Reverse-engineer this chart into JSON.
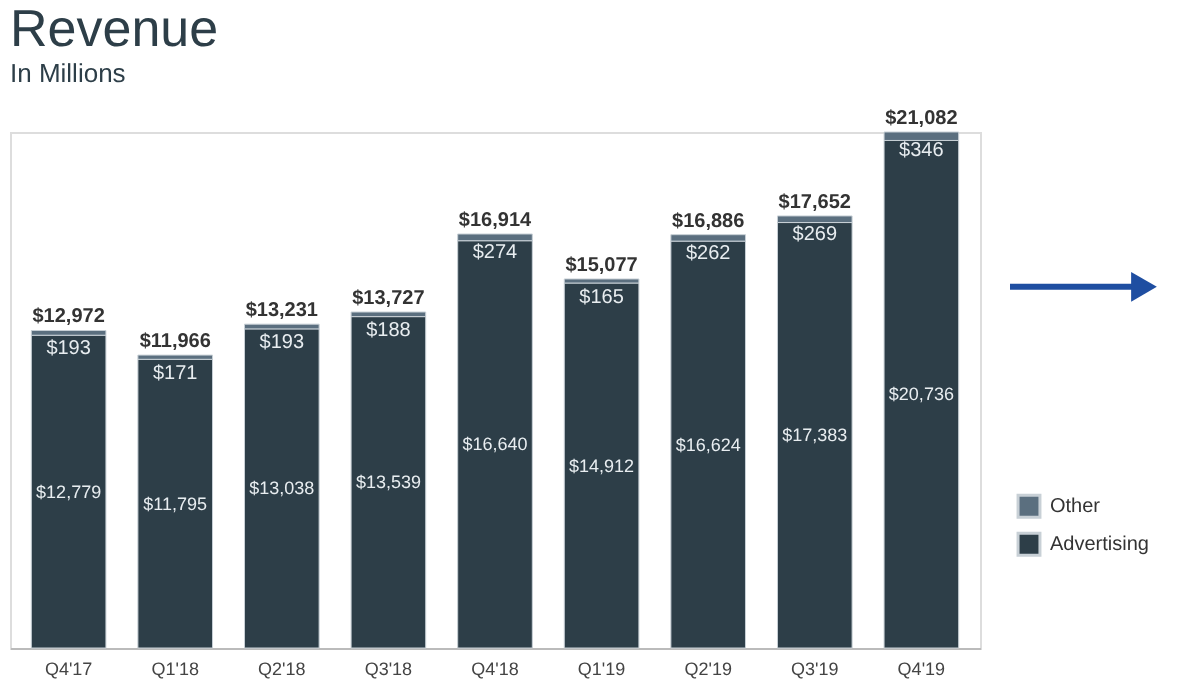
{
  "chart_data": {
    "type": "bar",
    "title": "Revenue",
    "subtitle": "In Millions",
    "stacked": true,
    "legend": "right",
    "grid": false,
    "categories": [
      "Q4'17",
      "Q1'18",
      "Q2'18",
      "Q3'18",
      "Q4'18",
      "Q1'19",
      "Q2'19",
      "Q3'19",
      "Q4'19"
    ],
    "series": [
      {
        "name": "Advertising",
        "color": "#2d3e48",
        "values": [
          12779,
          11795,
          13038,
          13539,
          16640,
          14912,
          16624,
          17383,
          20736
        ],
        "value_labels": [
          "$12,779",
          "$11,795",
          "$13,038",
          "$13,539",
          "$16,640",
          "$14,912",
          "$16,624",
          "$17,383",
          "$20,736"
        ]
      },
      {
        "name": "Other",
        "color": "#5b6f7f",
        "values": [
          193,
          171,
          193,
          188,
          274,
          165,
          262,
          269,
          346
        ],
        "value_labels": [
          "$193",
          "$171",
          "$193",
          "$188",
          "$274",
          "$165",
          "$262",
          "$269",
          "$346"
        ]
      }
    ],
    "totals": [
      "$12,972",
      "$11,966",
      "$13,231",
      "$13,727",
      "$16,914",
      "$15,077",
      "$16,886",
      "$17,652",
      "$21,082"
    ]
  }
}
